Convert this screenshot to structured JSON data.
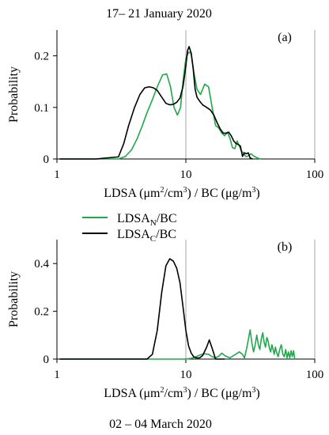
{
  "top_caption": "17– 21 January 2020",
  "bottom_caption": "02 – 04 March 2020",
  "legend": {
    "n_main": "LDSA",
    "n_sub": "N",
    "n_tail": "/BC",
    "c_main": "LDSA",
    "c_sub": "C",
    "c_tail": "/BC"
  },
  "colors": {
    "lsda_n": "#1fa84a",
    "lsda_c": "#000000",
    "refline": "#a6a6a6"
  },
  "chart_data": [
    {
      "type": "line",
      "panel_label": "(a)",
      "ylabel": "Probability",
      "xlabel_parts": [
        "LDSA (μm",
        "2",
        "/cm",
        "3",
        ") / BC (μg/m",
        "3",
        ")"
      ],
      "xscale": "log",
      "xlim": [
        1,
        100
      ],
      "ylim": [
        0,
        0.25
      ],
      "xticks": [
        1,
        10,
        100
      ],
      "xtick_labels": [
        "1",
        "10",
        "100"
      ],
      "yticks": [
        0,
        0.1,
        0.2
      ],
      "ytick_labels": [
        "0",
        "0.1",
        "0.2"
      ],
      "reference_lines_x": [
        10,
        100
      ],
      "series": [
        {
          "name": "LDSA_N/BC",
          "color": "#1fa84a",
          "x": [
            1.05,
            2.0,
            3.0,
            3.4,
            3.8,
            4.2,
            4.6,
            5.0,
            5.5,
            6.0,
            6.6,
            7.1,
            7.6,
            8.1,
            8.6,
            9.1,
            9.5,
            10.0,
            10.5,
            11.0,
            11.5,
            12.2,
            13.0,
            14.0,
            15.0,
            16.0,
            17.0,
            18.0,
            19.0,
            20.0,
            21.0,
            22.0,
            23.0,
            24.0,
            25.0,
            26.0,
            27.0,
            28.0,
            29.0,
            30.0,
            32.0,
            34.0,
            36.0,
            38.0
          ],
          "y": [
            0,
            0,
            0,
            0.005,
            0.018,
            0.04,
            0.065,
            0.09,
            0.115,
            0.14,
            0.163,
            0.165,
            0.14,
            0.1,
            0.085,
            0.1,
            0.15,
            0.195,
            0.207,
            0.205,
            0.17,
            0.135,
            0.125,
            0.145,
            0.14,
            0.1,
            0.065,
            0.06,
            0.05,
            0.045,
            0.052,
            0.04,
            0.022,
            0.02,
            0.035,
            0.025,
            0.015,
            0.012,
            0.005,
            0.005,
            0.01,
            0.005,
            0.002,
            0
          ]
        },
        {
          "name": "LDSA_C/BC",
          "color": "#000000",
          "x": [
            1.05,
            2.0,
            3.0,
            3.3,
            3.6,
            4.0,
            4.4,
            4.8,
            5.2,
            5.6,
            6.0,
            6.5,
            7.0,
            7.5,
            8.0,
            8.5,
            9.0,
            9.5,
            10.0,
            10.3,
            10.6,
            11.0,
            11.4,
            11.8,
            12.2,
            12.8,
            13.5,
            14.5,
            15.5,
            16.5,
            17.5,
            18.5,
            19.5,
            20.5,
            21.5,
            22.5,
            23.5,
            24.5,
            25.5,
            26.5,
            27.5,
            28.5,
            29.5,
            30.5,
            31.5,
            33.0
          ],
          "y": [
            0,
            0,
            0.004,
            0.03,
            0.065,
            0.1,
            0.125,
            0.138,
            0.14,
            0.138,
            0.133,
            0.12,
            0.108,
            0.105,
            0.106,
            0.11,
            0.118,
            0.14,
            0.18,
            0.21,
            0.218,
            0.205,
            0.175,
            0.135,
            0.12,
            0.112,
            0.105,
            0.1,
            0.095,
            0.085,
            0.07,
            0.058,
            0.05,
            0.05,
            0.052,
            0.045,
            0.035,
            0.03,
            0.028,
            0.025,
            0.005,
            0.012,
            0.01,
            0.012,
            0.002,
            0
          ]
        }
      ]
    },
    {
      "type": "line",
      "panel_label": "(b)",
      "ylabel": "Probability",
      "xlabel_parts": [
        "LDSA (μm",
        "2",
        "/cm",
        "3",
        ") / BC (μg/m",
        "3",
        ")"
      ],
      "xscale": "log",
      "xlim": [
        1,
        100
      ],
      "ylim": [
        0,
        0.5
      ],
      "xticks": [
        1,
        10,
        100
      ],
      "xtick_labels": [
        "1",
        "10",
        "100"
      ],
      "yticks": [
        0,
        0.2,
        0.4
      ],
      "ytick_labels": [
        "0",
        "0.2",
        "0.4"
      ],
      "reference_lines_x": [
        10,
        100
      ],
      "series": [
        {
          "name": "LDSA_N/BC",
          "color": "#1fa84a",
          "x": [
            1.05,
            8.0,
            10.0,
            11.0,
            12.0,
            13.0,
            14.0,
            15.0,
            16.0,
            17.0,
            18.0,
            19.0,
            20.0,
            22.0,
            24.0,
            26.0,
            27.5,
            28.5,
            29.5,
            30.5,
            31.5,
            32.5,
            33.5,
            34.5,
            35.5,
            36.5,
            37.5,
            38.5,
            39.5,
            40.5,
            41.5,
            42.5,
            43.5,
            44.5,
            45.5,
            46.5,
            47.5,
            48.5,
            49.5,
            50.5,
            52.0,
            53.5,
            55.0,
            56.5,
            58.0,
            59.5,
            61.0,
            62.5,
            64.0,
            65.5,
            67.0,
            68.5,
            70.0
          ],
          "y": [
            0,
            0,
            0,
            0.003,
            0.01,
            0.018,
            0.022,
            0.02,
            0.01,
            0.005,
            0.012,
            0.025,
            0.015,
            0.005,
            0.018,
            0.03,
            0.02,
            0.005,
            0.04,
            0.08,
            0.122,
            0.07,
            0.03,
            0.06,
            0.1,
            0.06,
            0.04,
            0.085,
            0.11,
            0.07,
            0.05,
            0.09,
            0.075,
            0.045,
            0.03,
            0.06,
            0.04,
            0.02,
            0.05,
            0.03,
            0.01,
            0.04,
            0.06,
            0.02,
            0.01,
            0.04,
            0.005,
            0.03,
            0.005,
            0.035,
            0.01,
            0.035,
            0.0
          ]
        },
        {
          "name": "LDSA_C/BC",
          "color": "#000000",
          "x": [
            1.05,
            4.0,
            5.0,
            5.5,
            6.0,
            6.5,
            7.0,
            7.5,
            8.0,
            8.5,
            9.0,
            9.5,
            10.0,
            10.5,
            11.0,
            11.5,
            12.0,
            12.8,
            13.5,
            14.5,
            15.2,
            16.0,
            17.0,
            20.0
          ],
          "y": [
            0,
            0,
            0,
            0.02,
            0.12,
            0.28,
            0.39,
            0.42,
            0.41,
            0.38,
            0.32,
            0.22,
            0.12,
            0.055,
            0.025,
            0.01,
            0.005,
            0.005,
            0.015,
            0.05,
            0.08,
            0.045,
            0.0,
            0
          ]
        }
      ]
    }
  ]
}
